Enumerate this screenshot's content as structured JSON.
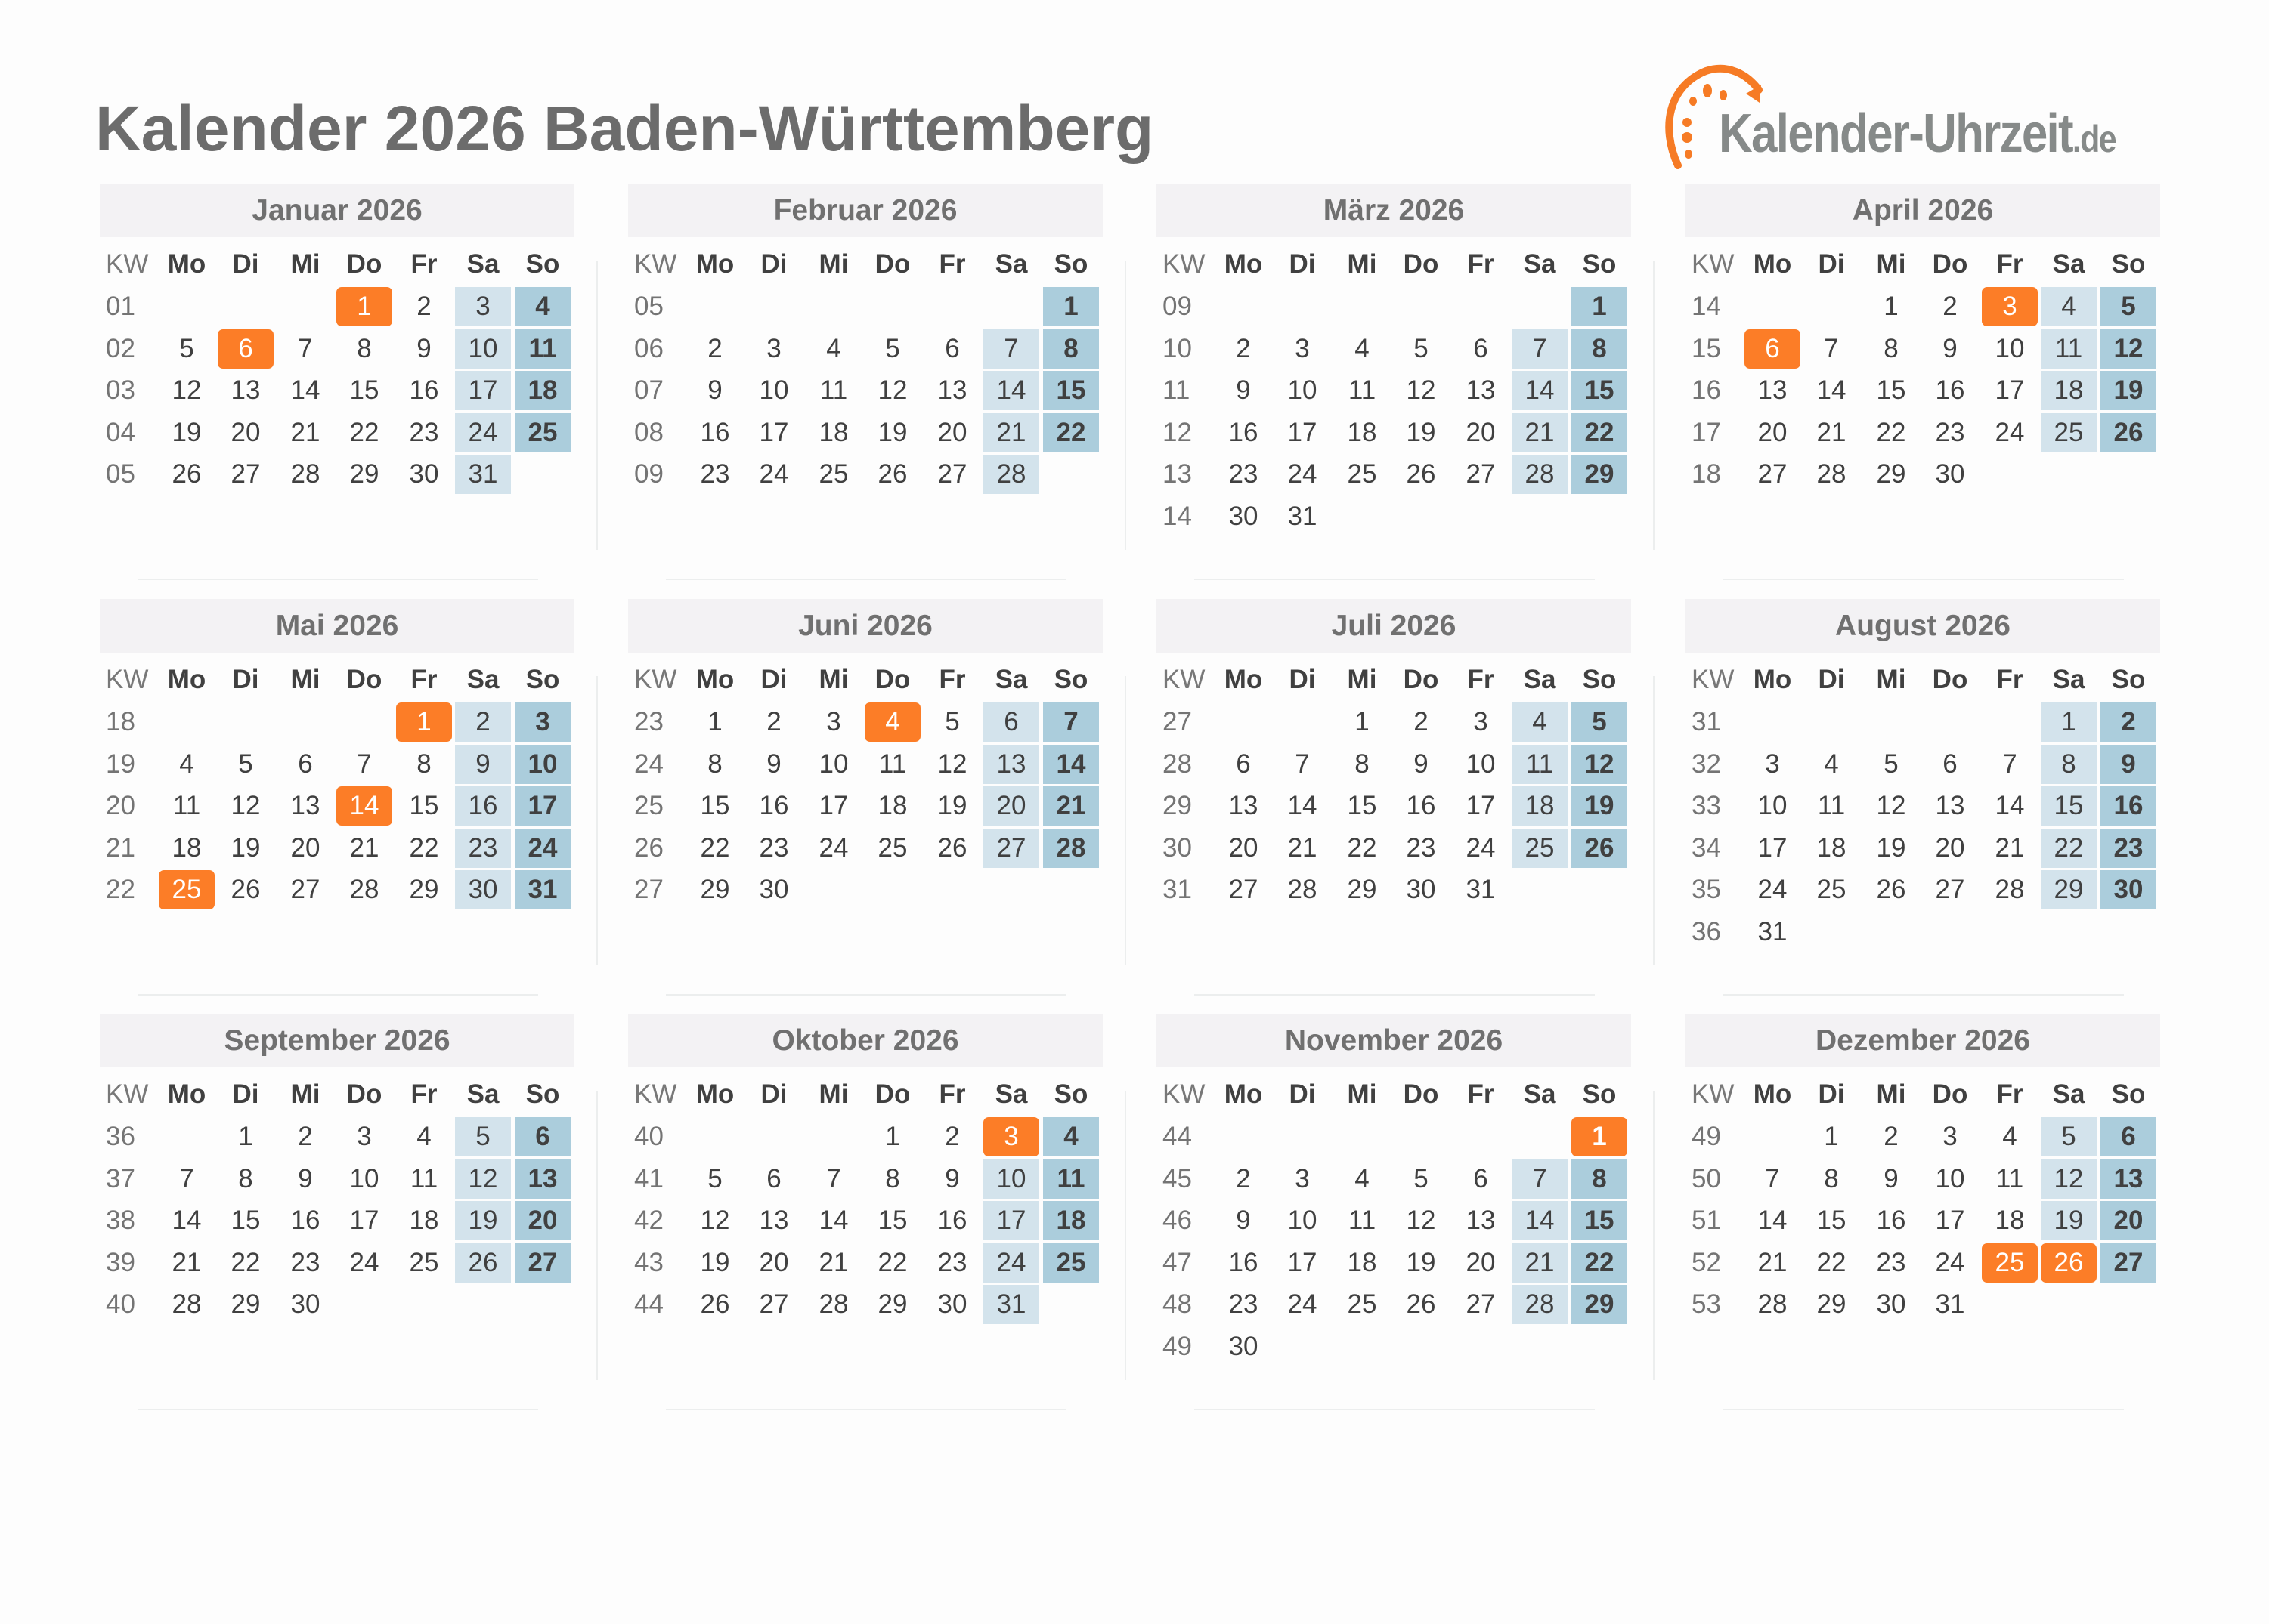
{
  "title": "Kalender 2026 Baden-Württemberg",
  "logo": {
    "name": "Kalender-Uhrzeit",
    "tld": ".de"
  },
  "colors": {
    "holiday": "#fc7d27",
    "saturday": "#d3e3ec",
    "sunday": "#abcddc",
    "header_bg": "#f3f2f4"
  },
  "weekday_headers": {
    "kw": "KW",
    "days": [
      "Mo",
      "Di",
      "Mi",
      "Do",
      "Fr",
      "Sa",
      "So"
    ]
  },
  "months": [
    {
      "name": "Januar 2026",
      "holidays": [
        1,
        6
      ],
      "weeks": [
        {
          "kw": "01",
          "days": [
            null,
            null,
            null,
            1,
            2,
            3,
            4
          ]
        },
        {
          "kw": "02",
          "days": [
            5,
            6,
            7,
            8,
            9,
            10,
            11
          ]
        },
        {
          "kw": "03",
          "days": [
            12,
            13,
            14,
            15,
            16,
            17,
            18
          ]
        },
        {
          "kw": "04",
          "days": [
            19,
            20,
            21,
            22,
            23,
            24,
            25
          ]
        },
        {
          "kw": "05",
          "days": [
            26,
            27,
            28,
            29,
            30,
            31,
            null
          ]
        }
      ]
    },
    {
      "name": "Februar 2026",
      "holidays": [],
      "weeks": [
        {
          "kw": "05",
          "days": [
            null,
            null,
            null,
            null,
            null,
            null,
            1
          ]
        },
        {
          "kw": "06",
          "days": [
            2,
            3,
            4,
            5,
            6,
            7,
            8
          ]
        },
        {
          "kw": "07",
          "days": [
            9,
            10,
            11,
            12,
            13,
            14,
            15
          ]
        },
        {
          "kw": "08",
          "days": [
            16,
            17,
            18,
            19,
            20,
            21,
            22
          ]
        },
        {
          "kw": "09",
          "days": [
            23,
            24,
            25,
            26,
            27,
            28,
            null
          ]
        }
      ]
    },
    {
      "name": "März 2026",
      "holidays": [],
      "weeks": [
        {
          "kw": "09",
          "days": [
            null,
            null,
            null,
            null,
            null,
            null,
            1
          ]
        },
        {
          "kw": "10",
          "days": [
            2,
            3,
            4,
            5,
            6,
            7,
            8
          ]
        },
        {
          "kw": "11",
          "days": [
            9,
            10,
            11,
            12,
            13,
            14,
            15
          ]
        },
        {
          "kw": "12",
          "days": [
            16,
            17,
            18,
            19,
            20,
            21,
            22
          ]
        },
        {
          "kw": "13",
          "days": [
            23,
            24,
            25,
            26,
            27,
            28,
            29
          ]
        },
        {
          "kw": "14",
          "days": [
            30,
            31,
            null,
            null,
            null,
            null,
            null
          ]
        }
      ]
    },
    {
      "name": "April 2026",
      "holidays": [
        3,
        6
      ],
      "weeks": [
        {
          "kw": "14",
          "days": [
            null,
            null,
            1,
            2,
            3,
            4,
            5
          ]
        },
        {
          "kw": "15",
          "days": [
            6,
            7,
            8,
            9,
            10,
            11,
            12
          ]
        },
        {
          "kw": "16",
          "days": [
            13,
            14,
            15,
            16,
            17,
            18,
            19
          ]
        },
        {
          "kw": "17",
          "days": [
            20,
            21,
            22,
            23,
            24,
            25,
            26
          ]
        },
        {
          "kw": "18",
          "days": [
            27,
            28,
            29,
            30,
            null,
            null,
            null
          ]
        }
      ]
    },
    {
      "name": "Mai 2026",
      "holidays": [
        1,
        14,
        25
      ],
      "weeks": [
        {
          "kw": "18",
          "days": [
            null,
            null,
            null,
            null,
            1,
            2,
            3
          ]
        },
        {
          "kw": "19",
          "days": [
            4,
            5,
            6,
            7,
            8,
            9,
            10
          ]
        },
        {
          "kw": "20",
          "days": [
            11,
            12,
            13,
            14,
            15,
            16,
            17
          ]
        },
        {
          "kw": "21",
          "days": [
            18,
            19,
            20,
            21,
            22,
            23,
            24
          ]
        },
        {
          "kw": "22",
          "days": [
            25,
            26,
            27,
            28,
            29,
            30,
            31
          ]
        }
      ]
    },
    {
      "name": "Juni 2026",
      "holidays": [
        4
      ],
      "weeks": [
        {
          "kw": "23",
          "days": [
            1,
            2,
            3,
            4,
            5,
            6,
            7
          ]
        },
        {
          "kw": "24",
          "days": [
            8,
            9,
            10,
            11,
            12,
            13,
            14
          ]
        },
        {
          "kw": "25",
          "days": [
            15,
            16,
            17,
            18,
            19,
            20,
            21
          ]
        },
        {
          "kw": "26",
          "days": [
            22,
            23,
            24,
            25,
            26,
            27,
            28
          ]
        },
        {
          "kw": "27",
          "days": [
            29,
            30,
            null,
            null,
            null,
            null,
            null
          ]
        }
      ]
    },
    {
      "name": "Juli 2026",
      "holidays": [],
      "weeks": [
        {
          "kw": "27",
          "days": [
            null,
            null,
            1,
            2,
            3,
            4,
            5
          ]
        },
        {
          "kw": "28",
          "days": [
            6,
            7,
            8,
            9,
            10,
            11,
            12
          ]
        },
        {
          "kw": "29",
          "days": [
            13,
            14,
            15,
            16,
            17,
            18,
            19
          ]
        },
        {
          "kw": "30",
          "days": [
            20,
            21,
            22,
            23,
            24,
            25,
            26
          ]
        },
        {
          "kw": "31",
          "days": [
            27,
            28,
            29,
            30,
            31,
            null,
            null
          ]
        }
      ]
    },
    {
      "name": "August 2026",
      "holidays": [],
      "weeks": [
        {
          "kw": "31",
          "days": [
            null,
            null,
            null,
            null,
            null,
            1,
            2
          ]
        },
        {
          "kw": "32",
          "days": [
            3,
            4,
            5,
            6,
            7,
            8,
            9
          ]
        },
        {
          "kw": "33",
          "days": [
            10,
            11,
            12,
            13,
            14,
            15,
            16
          ]
        },
        {
          "kw": "34",
          "days": [
            17,
            18,
            19,
            20,
            21,
            22,
            23
          ]
        },
        {
          "kw": "35",
          "days": [
            24,
            25,
            26,
            27,
            28,
            29,
            30
          ]
        },
        {
          "kw": "36",
          "days": [
            31,
            null,
            null,
            null,
            null,
            null,
            null
          ]
        }
      ]
    },
    {
      "name": "September 2026",
      "holidays": [],
      "weeks": [
        {
          "kw": "36",
          "days": [
            null,
            1,
            2,
            3,
            4,
            5,
            6
          ]
        },
        {
          "kw": "37",
          "days": [
            7,
            8,
            9,
            10,
            11,
            12,
            13
          ]
        },
        {
          "kw": "38",
          "days": [
            14,
            15,
            16,
            17,
            18,
            19,
            20
          ]
        },
        {
          "kw": "39",
          "days": [
            21,
            22,
            23,
            24,
            25,
            26,
            27
          ]
        },
        {
          "kw": "40",
          "days": [
            28,
            29,
            30,
            null,
            null,
            null,
            null
          ]
        }
      ]
    },
    {
      "name": "Oktober 2026",
      "holidays": [
        3
      ],
      "weeks": [
        {
          "kw": "40",
          "days": [
            null,
            null,
            null,
            1,
            2,
            3,
            4
          ]
        },
        {
          "kw": "41",
          "days": [
            5,
            6,
            7,
            8,
            9,
            10,
            11
          ]
        },
        {
          "kw": "42",
          "days": [
            12,
            13,
            14,
            15,
            16,
            17,
            18
          ]
        },
        {
          "kw": "43",
          "days": [
            19,
            20,
            21,
            22,
            23,
            24,
            25
          ]
        },
        {
          "kw": "44",
          "days": [
            26,
            27,
            28,
            29,
            30,
            31,
            null
          ]
        }
      ]
    },
    {
      "name": "November 2026",
      "holidays": [
        1
      ],
      "weeks": [
        {
          "kw": "44",
          "days": [
            null,
            null,
            null,
            null,
            null,
            null,
            1
          ]
        },
        {
          "kw": "45",
          "days": [
            2,
            3,
            4,
            5,
            6,
            7,
            8
          ]
        },
        {
          "kw": "46",
          "days": [
            9,
            10,
            11,
            12,
            13,
            14,
            15
          ]
        },
        {
          "kw": "47",
          "days": [
            16,
            17,
            18,
            19,
            20,
            21,
            22
          ]
        },
        {
          "kw": "48",
          "days": [
            23,
            24,
            25,
            26,
            27,
            28,
            29
          ]
        },
        {
          "kw": "49",
          "days": [
            30,
            null,
            null,
            null,
            null,
            null,
            null
          ]
        }
      ]
    },
    {
      "name": "Dezember 2026",
      "holidays": [
        25,
        26
      ],
      "weeks": [
        {
          "kw": "49",
          "days": [
            null,
            1,
            2,
            3,
            4,
            5,
            6
          ]
        },
        {
          "kw": "50",
          "days": [
            7,
            8,
            9,
            10,
            11,
            12,
            13
          ]
        },
        {
          "kw": "51",
          "days": [
            14,
            15,
            16,
            17,
            18,
            19,
            20
          ]
        },
        {
          "kw": "52",
          "days": [
            21,
            22,
            23,
            24,
            25,
            26,
            27
          ]
        },
        {
          "kw": "53",
          "days": [
            28,
            29,
            30,
            31,
            null,
            null,
            null
          ]
        }
      ]
    }
  ]
}
